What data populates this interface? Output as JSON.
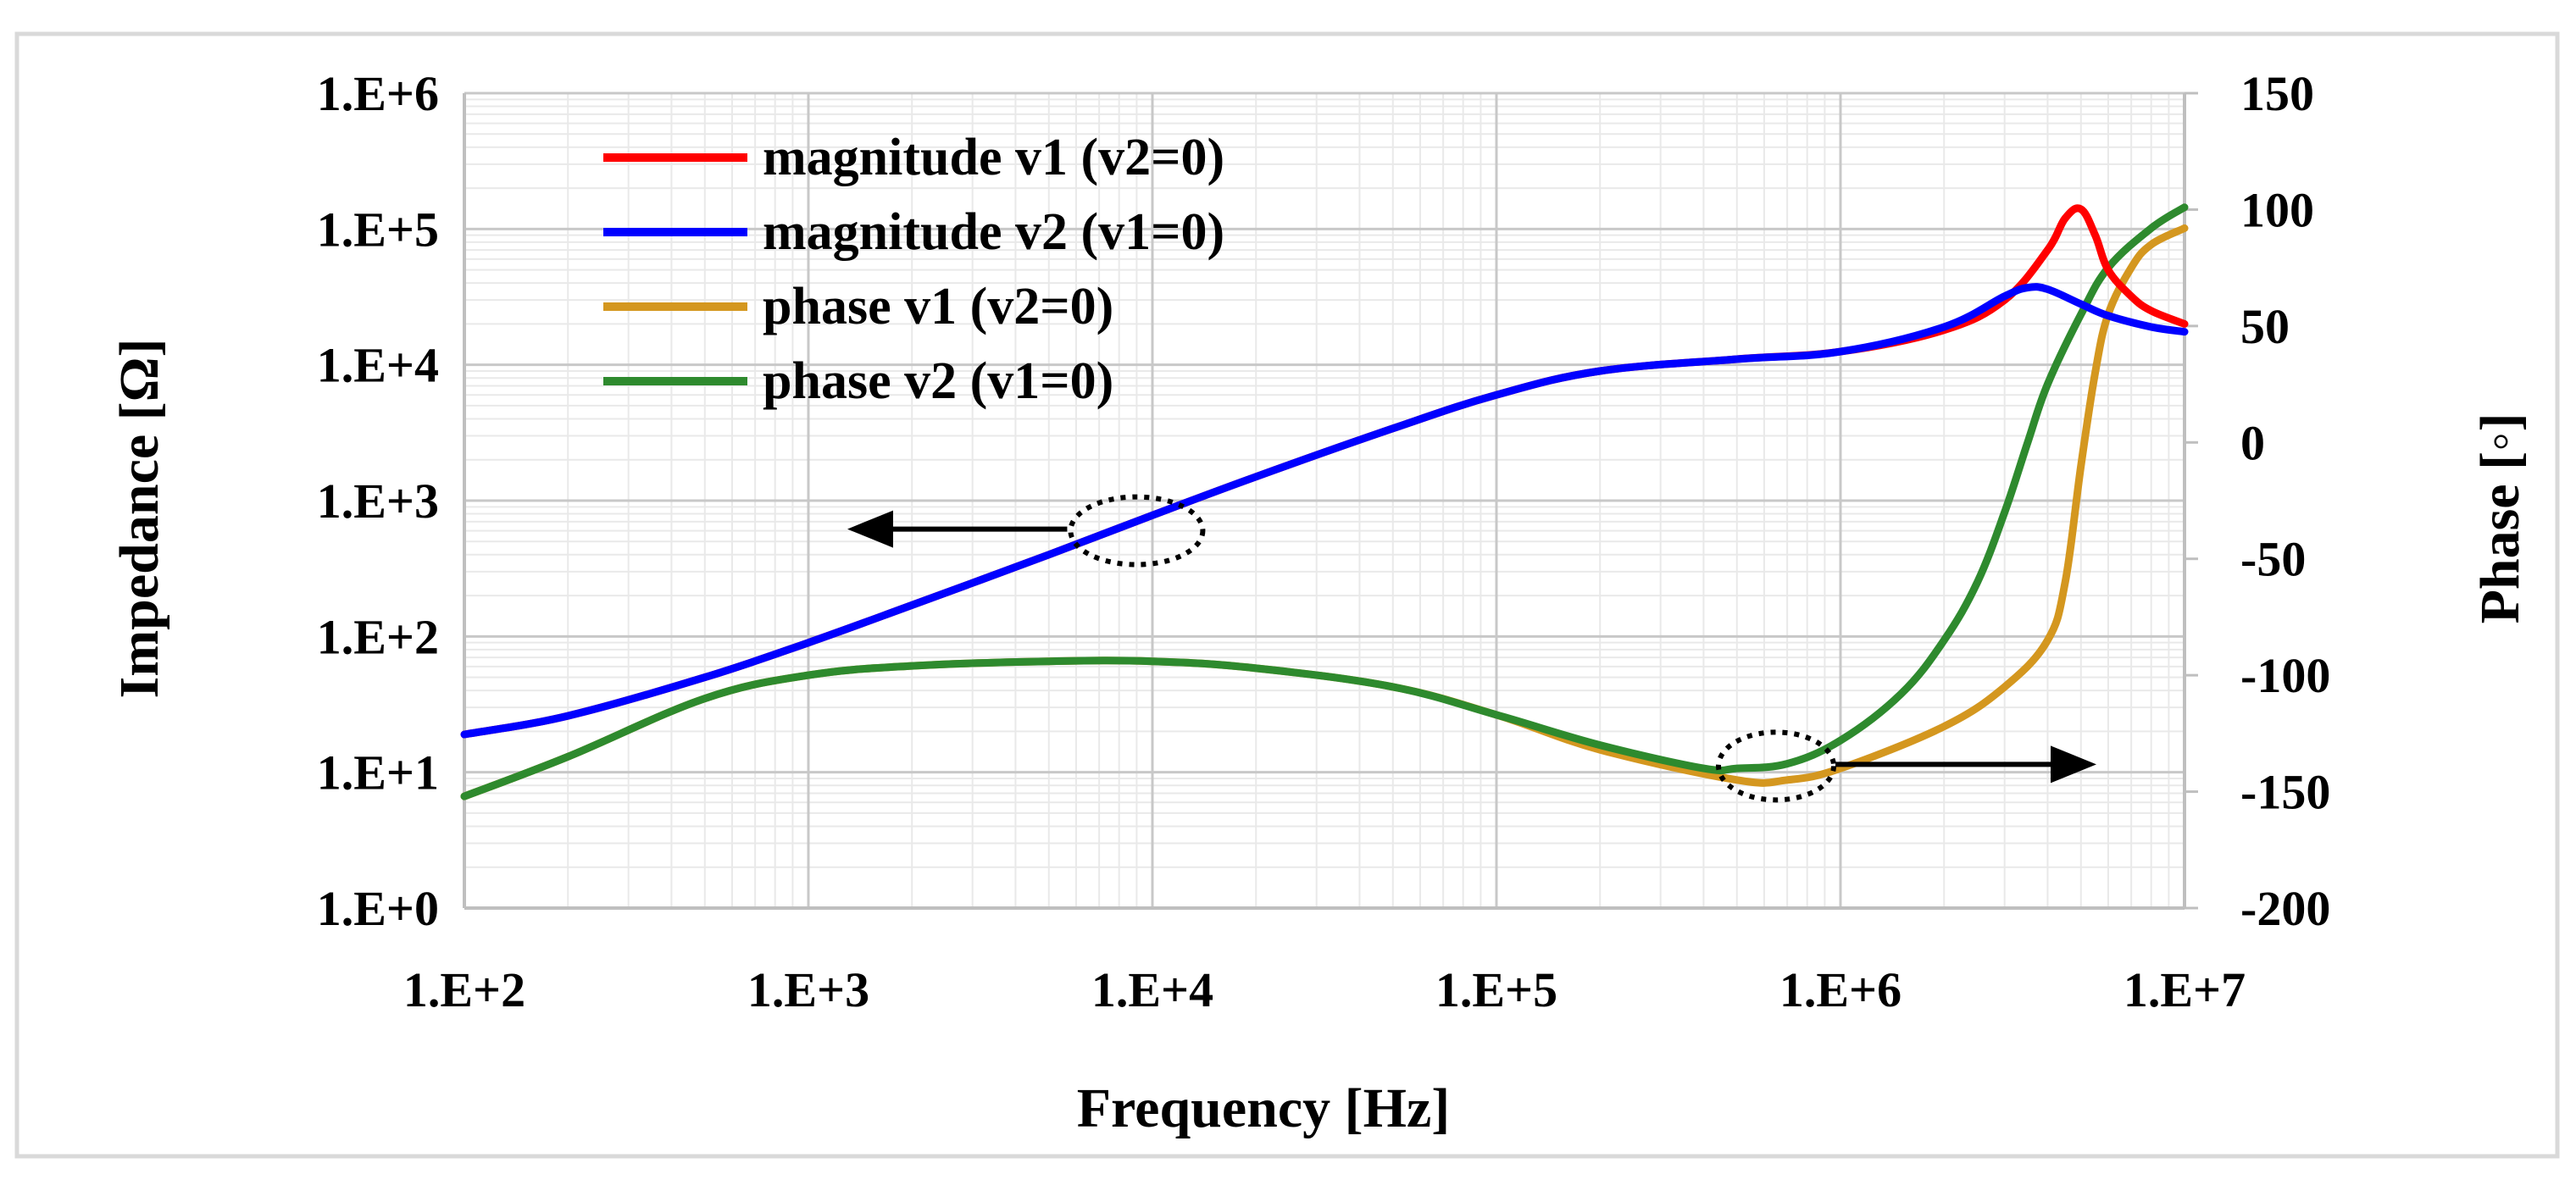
{
  "chart_data": {
    "type": "line",
    "xlabel": "Frequency [Hz]",
    "ylabel_left": "Impedance [Ω]",
    "ylabel_right": "Phase [◦]",
    "x_scale": "log",
    "y_left_scale": "log",
    "xlim": [
      100,
      10000000
    ],
    "ylim_left": [
      1,
      1000000
    ],
    "ylim_right": [
      -200,
      150
    ],
    "x_tick_values": [
      100,
      1000,
      10000,
      100000,
      1000000,
      10000000
    ],
    "x_tick_labels": [
      "1.E+2",
      "1.E+3",
      "1.E+4",
      "1.E+5",
      "1.E+6",
      "1.E+7"
    ],
    "y_left_tick_values": [
      1,
      10,
      100,
      1000,
      10000,
      100000,
      1000000
    ],
    "y_left_tick_labels": [
      "1.E+0",
      "1.E+1",
      "1.E+2",
      "1.E+3",
      "1.E+4",
      "1.E+5",
      "1.E+6"
    ],
    "y_right_tick_values": [
      -200,
      -150,
      -100,
      -50,
      0,
      50,
      100,
      150
    ],
    "y_right_tick_labels": [
      "-200",
      "-150",
      "-100",
      "-50",
      "0",
      "50",
      "100",
      "150"
    ],
    "grid": true,
    "legend_position": "top-left",
    "series": [
      {
        "name": "magnitude v1 (v2=0)",
        "axis": "left",
        "color": "#ff0000",
        "x": [
          100,
          200,
          500,
          1000,
          2000,
          5000,
          10000,
          20000,
          50000,
          100000,
          200000,
          500000,
          1000000,
          2000000,
          3000000,
          4000000,
          4500000,
          5000000,
          5500000,
          6000000,
          7000000,
          8000000,
          10000000
        ],
        "y": [
          19,
          26,
          50,
          90,
          170,
          400,
          780,
          1500,
          3400,
          6000,
          9000,
          11000,
          12500,
          18000,
          30000,
          70000,
          120000,
          140000,
          90000,
          50000,
          32000,
          25000,
          20000
        ]
      },
      {
        "name": "magnitude v2 (v1=0)",
        "axis": "left",
        "color": "#0000ff",
        "x": [
          100,
          200,
          500,
          1000,
          2000,
          5000,
          10000,
          20000,
          50000,
          100000,
          200000,
          500000,
          1000000,
          2000000,
          3000000,
          3500000,
          4000000,
          5000000,
          6000000,
          8000000,
          10000000
        ],
        "y": [
          19,
          26,
          50,
          90,
          170,
          400,
          780,
          1500,
          3400,
          6000,
          9000,
          11000,
          12500,
          19000,
          32000,
          37000,
          36000,
          28000,
          23000,
          19000,
          17500
        ]
      },
      {
        "name": "phase v1 (v2=0)",
        "axis": "right",
        "color": "#d4971f",
        "x": [
          100,
          200,
          500,
          1000,
          2000,
          5000,
          10000,
          20000,
          50000,
          100000,
          200000,
          500000,
          700000,
          1000000,
          2000000,
          3000000,
          4000000,
          4500000,
          5000000,
          5500000,
          6000000,
          7000000,
          8000000,
          10000000
        ],
        "y": [
          -152,
          -135,
          -110,
          -100,
          -96,
          -94,
          -94,
          -97,
          -105,
          -117,
          -132,
          -145,
          -145,
          -140,
          -122,
          -105,
          -85,
          -60,
          -10,
          30,
          55,
          75,
          85,
          92
        ]
      },
      {
        "name": "phase v2 (v1=0)",
        "axis": "right",
        "color": "#2e8a2e",
        "x": [
          100,
          200,
          500,
          1000,
          2000,
          5000,
          10000,
          20000,
          50000,
          100000,
          200000,
          400000,
          500000,
          700000,
          1000000,
          1500000,
          2000000,
          2500000,
          3000000,
          3500000,
          4000000,
          5000000,
          6000000,
          8000000,
          10000000
        ],
        "y": [
          -152,
          -135,
          -110,
          -100,
          -96,
          -94,
          -94,
          -97,
          -105,
          -117,
          -130,
          -140,
          -140,
          -138,
          -128,
          -108,
          -85,
          -60,
          -30,
          0,
          25,
          55,
          75,
          92,
          101
        ]
      }
    ],
    "annotations": [
      {
        "type": "ellipse",
        "label": "magnitude-curves-marker",
        "x": 9000,
        "axis": "left",
        "y": 600
      },
      {
        "type": "arrow",
        "label": "points-to-left-axis",
        "direction": "left"
      },
      {
        "type": "ellipse",
        "label": "phase-curves-marker",
        "x": 650000,
        "axis": "right",
        "y": -139
      },
      {
        "type": "arrow",
        "label": "points-to-right-axis",
        "direction": "right"
      }
    ]
  }
}
